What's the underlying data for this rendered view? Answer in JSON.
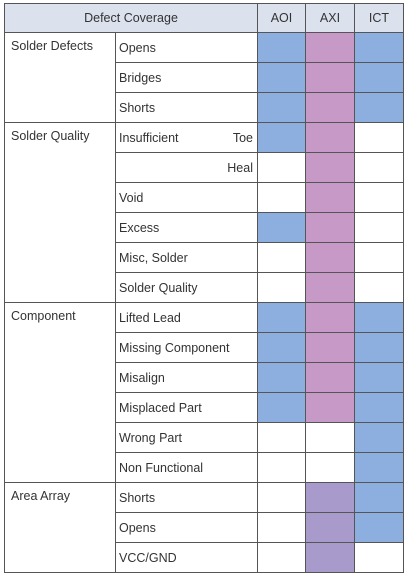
{
  "header": {
    "coverage_label": "Defect Coverage",
    "aoi_label": "AOI",
    "axi_label": "AXI",
    "ict_label": "ICT"
  },
  "colors": {
    "header_bg": "#dbe2ee",
    "aoi_covered": "#8cafe0",
    "axi_covered": "#c699c7",
    "axi_covered_area_array": "#a99acc",
    "ict_covered": "#8cafe0",
    "not_covered": "#ffffff"
  },
  "rows": [
    {
      "category": "Solder Defects",
      "defect": "Opens",
      "aoi": true,
      "axi": true,
      "ict": true
    },
    {
      "category": "",
      "defect": "Bridges",
      "aoi": true,
      "axi": true,
      "ict": true
    },
    {
      "category": "",
      "defect": "Shorts",
      "aoi": true,
      "axi": true,
      "ict": true
    },
    {
      "category": "Solder Quality",
      "defect": "Insufficient",
      "sub": "Toe",
      "aoi": true,
      "axi": true,
      "ict": false
    },
    {
      "category": "",
      "defect": "",
      "sub": "Heal",
      "aoi": false,
      "axi": true,
      "ict": false
    },
    {
      "category": "",
      "defect": "Void",
      "aoi": false,
      "axi": true,
      "ict": false
    },
    {
      "category": "",
      "defect": "Excess",
      "aoi": true,
      "axi": true,
      "ict": false
    },
    {
      "category": "",
      "defect": "Misc, Solder",
      "aoi": false,
      "axi": true,
      "ict": false
    },
    {
      "category": "",
      "defect": "Solder Quality",
      "aoi": false,
      "axi": true,
      "ict": false
    },
    {
      "category": "Component",
      "defect": "Lifted Lead",
      "aoi": true,
      "axi": true,
      "ict": true
    },
    {
      "category": "",
      "defect": "Missing Component",
      "aoi": true,
      "axi": true,
      "ict": true
    },
    {
      "category": "",
      "defect": "Misalign",
      "aoi": true,
      "axi": true,
      "ict": true
    },
    {
      "category": "",
      "defect": "Misplaced Part",
      "aoi": true,
      "axi": true,
      "ict": true
    },
    {
      "category": "",
      "defect": "Wrong Part",
      "aoi": false,
      "axi": false,
      "ict": true
    },
    {
      "category": "",
      "defect": "Non Functional",
      "aoi": false,
      "axi": false,
      "ict": true
    },
    {
      "category": "Area Array",
      "defect": "Shorts",
      "aoi": false,
      "axi": true,
      "ict": true
    },
    {
      "category": "",
      "defect": "Opens",
      "aoi": false,
      "axi": true,
      "ict": true
    },
    {
      "category": "",
      "defect": "VCC/GND",
      "aoi": false,
      "axi": true,
      "ict": false
    }
  ]
}
